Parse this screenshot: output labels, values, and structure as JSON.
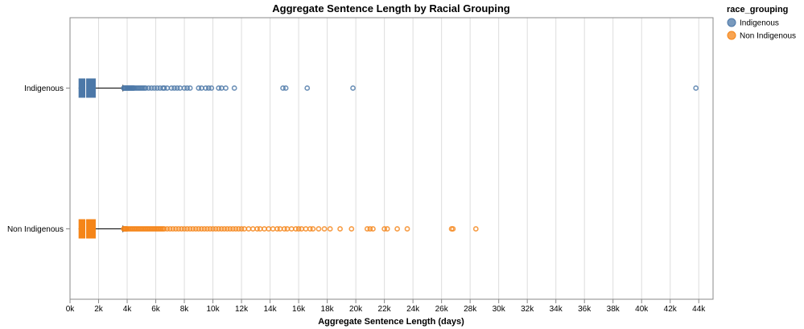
{
  "chart_data": {
    "type": "boxplot",
    "title": "Aggregate Sentence Length by Racial Grouping",
    "xlabel": "Aggregate Sentence Length (days)",
    "ylabel": "",
    "xlim": [
      0,
      45000
    ],
    "x_ticks": [
      0,
      2000,
      4000,
      6000,
      8000,
      10000,
      12000,
      14000,
      16000,
      18000,
      20000,
      22000,
      24000,
      26000,
      28000,
      30000,
      32000,
      34000,
      36000,
      38000,
      40000,
      42000,
      44000
    ],
    "x_tick_labels": [
      "0k",
      "2k",
      "4k",
      "6k",
      "8k",
      "10k",
      "12k",
      "14k",
      "16k",
      "18k",
      "20k",
      "22k",
      "24k",
      "26k",
      "28k",
      "30k",
      "32k",
      "34k",
      "36k",
      "38k",
      "40k",
      "42k",
      "44k"
    ],
    "grid": true,
    "legend": {
      "title": "race_grouping",
      "position": "top-right",
      "entries": [
        "Indigenous",
        "Non Indigenous"
      ]
    },
    "series": [
      {
        "name": "Indigenous",
        "color": "#4c78a8",
        "whisker_low": 600,
        "q1": 600,
        "median": 1100,
        "q3": 1800,
        "whisker_high": 3700,
        "outliers": [
          3750,
          3800,
          3850,
          3900,
          3950,
          4000,
          4050,
          4100,
          4150,
          4200,
          4250,
          4300,
          4350,
          4400,
          4450,
          4500,
          4600,
          4700,
          4800,
          4900,
          5000,
          5100,
          5200,
          5300,
          5500,
          5700,
          5900,
          6100,
          6300,
          6500,
          6600,
          6800,
          7100,
          7300,
          7500,
          7700,
          8000,
          8200,
          8400,
          9000,
          9200,
          9500,
          9700,
          9900,
          10400,
          10600,
          10900,
          11500,
          14900,
          15100,
          16600,
          19800,
          43800
        ]
      },
      {
        "name": "Non Indigenous",
        "color": "#f58518",
        "whisker_low": 600,
        "q1": 600,
        "median": 1100,
        "q3": 1800,
        "whisker_high": 3700,
        "outliers": [
          3750,
          3800,
          3850,
          3900,
          3950,
          4000,
          4100,
          4200,
          4300,
          4400,
          4500,
          4600,
          4700,
          4800,
          4900,
          5000,
          5100,
          5200,
          5300,
          5400,
          5500,
          5600,
          5700,
          5800,
          5900,
          6000,
          6100,
          6200,
          6300,
          6400,
          6500,
          6600,
          6800,
          7000,
          7200,
          7400,
          7600,
          7800,
          8000,
          8200,
          8400,
          8600,
          8800,
          9000,
          9200,
          9400,
          9600,
          9800,
          10000,
          10200,
          10400,
          10600,
          10800,
          11000,
          11200,
          11400,
          11600,
          11800,
          12000,
          12200,
          12500,
          12800,
          13100,
          13300,
          13600,
          13900,
          14200,
          14500,
          14700,
          15000,
          15200,
          15500,
          15800,
          16000,
          16200,
          16500,
          16800,
          17000,
          17400,
          17800,
          18200,
          18900,
          19700,
          20800,
          21000,
          21200,
          22000,
          22200,
          22900,
          23600,
          26700,
          26800,
          28400
        ]
      }
    ]
  }
}
